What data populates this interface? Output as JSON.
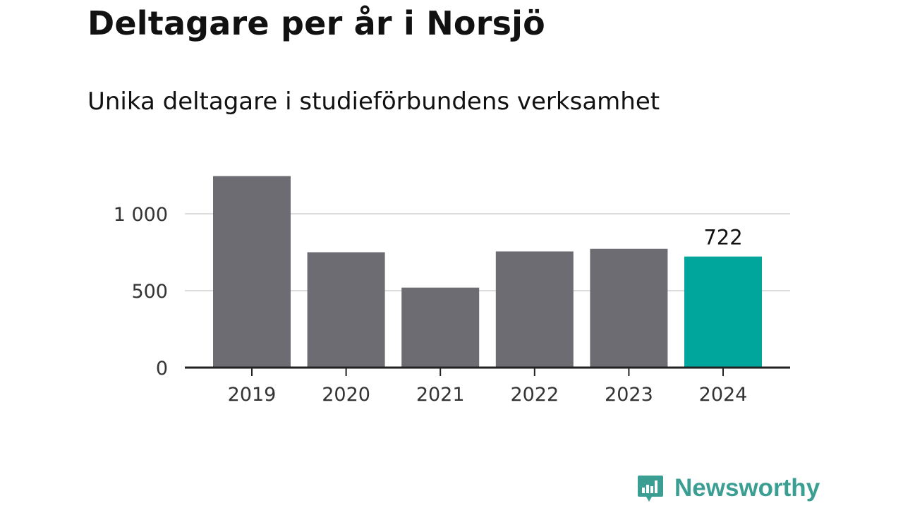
{
  "title": "Deltagare per år i Norsjö",
  "subtitle": "Unika deltagare i studieförbundens verksamhet",
  "logo": {
    "text": "Newsworthy",
    "icon": "bar-chart-speech-bubble-icon",
    "color": "#3a9e93"
  },
  "chart_data": {
    "type": "bar",
    "title": "Deltagare per år i Norsjö",
    "subtitle": "Unika deltagare i studieförbundens verksamhet",
    "categories": [
      "2019",
      "2020",
      "2021",
      "2022",
      "2023",
      "2024"
    ],
    "values": [
      1245,
      750,
      520,
      755,
      772,
      722
    ],
    "highlight_index": 5,
    "data_labels": [
      {
        "index": 5,
        "text": "722"
      }
    ],
    "yticks": [
      {
        "value": 0,
        "label": "0"
      },
      {
        "value": 500,
        "label": "500"
      },
      {
        "value": 1000,
        "label": "1 000"
      }
    ],
    "ylim": [
      0,
      1300
    ],
    "xlabel": "",
    "ylabel": "",
    "grid": true,
    "colors": {
      "bar": "#6d6c72",
      "highlight": "#00a59b",
      "grid": "#dcdcdc",
      "axis": "#222222"
    }
  }
}
